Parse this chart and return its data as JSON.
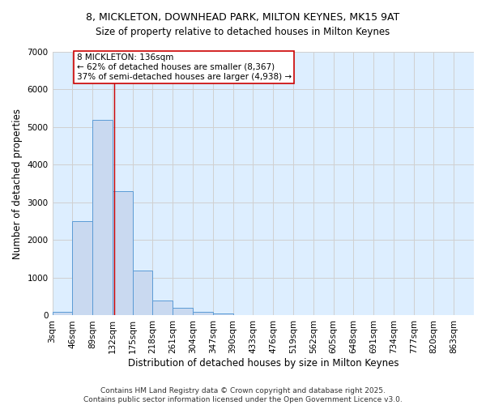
{
  "title_line1": "8, MICKLETON, DOWNHEAD PARK, MILTON KEYNES, MK15 9AT",
  "title_line2": "Size of property relative to detached houses in Milton Keynes",
  "xlabel": "Distribution of detached houses by size in Milton Keynes",
  "ylabel": "Number of detached properties",
  "bin_labels": [
    "3sqm",
    "46sqm",
    "89sqm",
    "132sqm",
    "175sqm",
    "218sqm",
    "261sqm",
    "304sqm",
    "347sqm",
    "390sqm",
    "433sqm",
    "476sqm",
    "519sqm",
    "562sqm",
    "605sqm",
    "648sqm",
    "691sqm",
    "734sqm",
    "777sqm",
    "820sqm",
    "863sqm"
  ],
  "bin_edges": [
    3,
    46,
    89,
    132,
    175,
    218,
    261,
    304,
    347,
    390,
    433,
    476,
    519,
    562,
    605,
    648,
    691,
    734,
    777,
    820,
    863
  ],
  "bar_heights": [
    100,
    2500,
    5200,
    3300,
    1200,
    400,
    200,
    100,
    50,
    20,
    10,
    5,
    5,
    5,
    5,
    5,
    5,
    5,
    5,
    5
  ],
  "bar_color": "#c9d9f0",
  "bar_edge_color": "#5b9bd5",
  "property_size": 136,
  "vline_color": "#cc0000",
  "annotation_text": "8 MICKLETON: 136sqm\n← 62% of detached houses are smaller (8,367)\n37% of semi-detached houses are larger (4,938) →",
  "annotation_box_color": "#ffffff",
  "annotation_box_edge": "#cc0000",
  "ylim": [
    0,
    7000
  ],
  "yticks": [
    0,
    1000,
    2000,
    3000,
    4000,
    5000,
    6000,
    7000
  ],
  "grid_color": "#d0d0d0",
  "background_color": "#ddeeff",
  "footer_line1": "Contains HM Land Registry data © Crown copyright and database right 2025.",
  "footer_line2": "Contains public sector information licensed under the Open Government Licence v3.0.",
  "title_fontsize": 9,
  "axis_label_fontsize": 8.5,
  "tick_fontsize": 7.5,
  "annotation_fontsize": 7.5,
  "footer_fontsize": 6.5
}
